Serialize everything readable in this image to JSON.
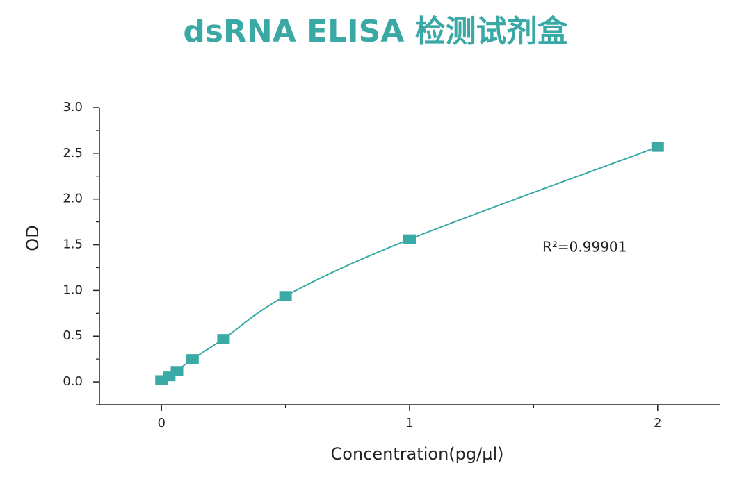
{
  "chart_data": {
    "type": "scatter",
    "title": "dsRNA ELISA  检测试剂盒",
    "xlabel": "Concentration(pg/µl)",
    "ylabel": "OD",
    "annotation": "R²=0.99901",
    "color": "#3aaaa6",
    "fit_curve": true,
    "x": [
      0,
      0.03125,
      0.0625,
      0.125,
      0.25,
      0.5,
      1,
      2
    ],
    "values": [
      0.02,
      0.06,
      0.12,
      0.25,
      0.47,
      0.94,
      1.56,
      2.57
    ],
    "xlim": [
      -0.25,
      2.25
    ],
    "ylim": [
      -0.25,
      3.0
    ],
    "xticks": [
      0,
      1,
      2
    ],
    "xminorticks": [
      0.5,
      1.5
    ],
    "yticks": [
      {
        "value": 0,
        "label": "0.0"
      },
      0.5,
      {
        "value": 1,
        "label": "1.0"
      },
      1.5,
      {
        "value": 2,
        "label": "2.0"
      },
      2.5,
      {
        "value": 3,
        "label": "3.0"
      }
    ],
    "yminorticks": [
      -0.25,
      0.25,
      0.75,
      1.25,
      1.75,
      2.25,
      2.75
    ]
  }
}
